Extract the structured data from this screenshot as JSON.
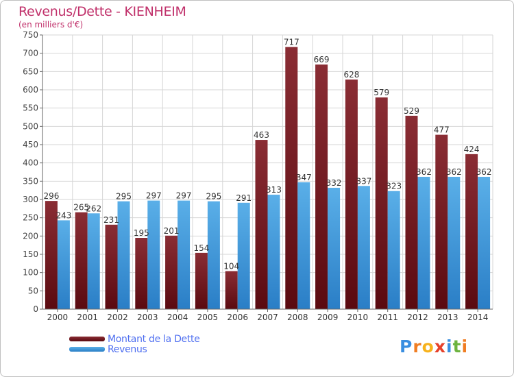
{
  "header": {
    "title": "Revenus/Dette - KIENHEIM",
    "subtitle": "(en milliers d'€)"
  },
  "colors": {
    "dette": "#7b1c24",
    "revenus": "#4a9fe0",
    "title": "#c0306a",
    "legend_text": "#4f6ff0"
  },
  "chart_data": {
    "type": "bar",
    "title": "Revenus/Dette - KIENHEIM",
    "subtitle": "(en milliers d'€)",
    "categories": [
      "2000",
      "2001",
      "2002",
      "2003",
      "2004",
      "2005",
      "2006",
      "2007",
      "2008",
      "2009",
      "2010",
      "2011",
      "2012",
      "2013",
      "2014"
    ],
    "series": [
      {
        "name": "Montant de la Dette",
        "color": "#7b1c24",
        "values": [
          296,
          265,
          231,
          195,
          201,
          154,
          104,
          463,
          717,
          669,
          628,
          579,
          529,
          477,
          424
        ]
      },
      {
        "name": "Revenus",
        "color": "#4a9fe0",
        "values": [
          243,
          262,
          295,
          297,
          297,
          295,
          291,
          313,
          347,
          332,
          337,
          323,
          362,
          362,
          362
        ]
      }
    ],
    "ylim": [
      0,
      750
    ],
    "yticks": [
      0,
      50,
      100,
      150,
      200,
      250,
      300,
      350,
      400,
      450,
      500,
      550,
      600,
      650,
      700,
      750
    ],
    "grid": true,
    "legend": "bottom-left"
  },
  "legend": {
    "items": [
      {
        "label": "Montant de la Dette"
      },
      {
        "label": "Revenus"
      }
    ]
  },
  "logo": {
    "letters": [
      "P",
      "r",
      "o",
      "x",
      "i",
      "t",
      "i"
    ],
    "colors": [
      "#3a8ee0",
      "#f07d22",
      "#f7b21c",
      "#e6412a",
      "#3a8ee0",
      "#6cb33f",
      "#f07d22"
    ]
  }
}
